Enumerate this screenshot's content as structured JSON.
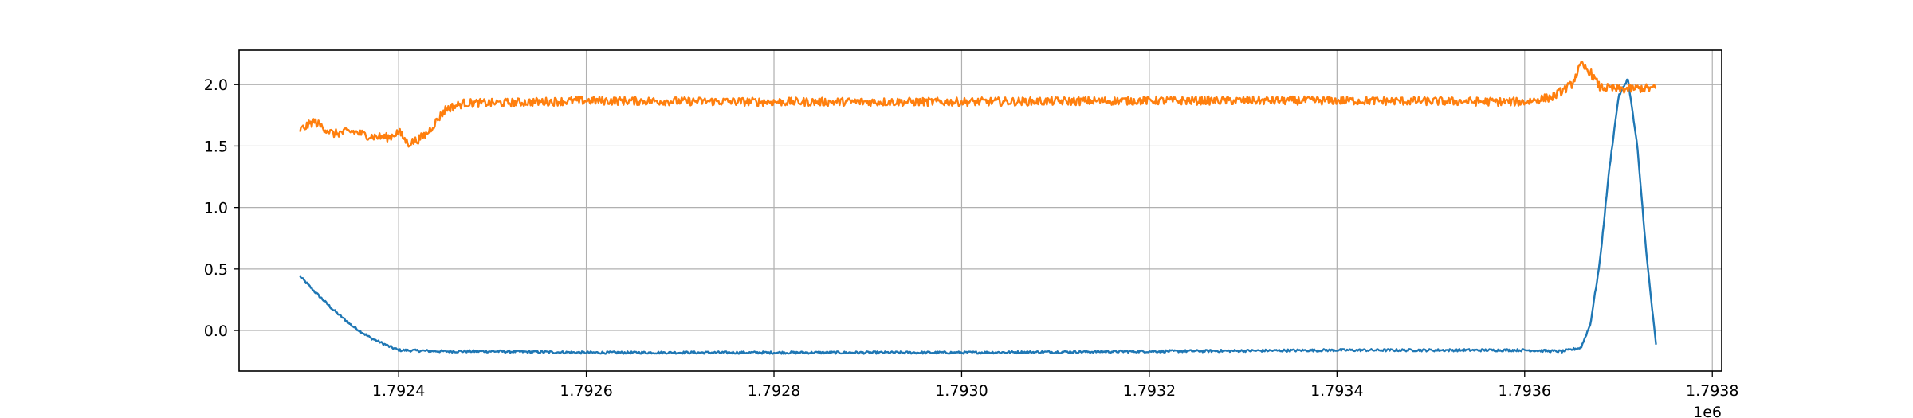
{
  "chart_data": {
    "type": "line",
    "title": "",
    "xlabel": "",
    "ylabel": "",
    "x_offset_label": "1e6",
    "xlim": [
      1.79223,
      1.79381
    ],
    "ylim": [
      -0.33,
      2.28
    ],
    "x_scale": 1000000,
    "grid": true,
    "legend": "none",
    "x_ticks": [
      1.7924,
      1.7926,
      1.7928,
      1.793,
      1.7932,
      1.7934,
      1.7936,
      1.7938
    ],
    "x_tick_labels": [
      "1.7924",
      "1.7926",
      "1.7928",
      "1.7930",
      "1.7932",
      "1.7934",
      "1.7936",
      "1.7938"
    ],
    "y_ticks": [
      0.0,
      0.5,
      1.0,
      1.5,
      2.0
    ],
    "y_tick_labels": [
      "0.0",
      "0.5",
      "1.0",
      "1.5",
      "2.0"
    ],
    "series": [
      {
        "color": "#1f77b4",
        "noise": 0.01,
        "x": [
          1.792295,
          1.79231,
          1.79233,
          1.79235,
          1.79237,
          1.79239,
          1.7924,
          1.79245,
          1.7925,
          1.7926,
          1.7928,
          1.793,
          1.7932,
          1.7934,
          1.7936,
          1.79364,
          1.79366,
          1.79367,
          1.79368,
          1.79369,
          1.7937,
          1.79371,
          1.79372,
          1.79373,
          1.79374
        ],
        "y": [
          0.44,
          0.32,
          0.17,
          0.04,
          -0.06,
          -0.13,
          -0.16,
          -0.17,
          -0.17,
          -0.18,
          -0.18,
          -0.18,
          -0.17,
          -0.16,
          -0.16,
          -0.17,
          -0.14,
          0.05,
          0.55,
          1.3,
          1.9,
          2.05,
          1.5,
          0.6,
          -0.12
        ]
      },
      {
        "color": "#ff7f0e",
        "noise": 0.035,
        "x": [
          1.792295,
          1.79231,
          1.79233,
          1.79235,
          1.79237,
          1.79239,
          1.7924,
          1.79241,
          1.79242,
          1.79243,
          1.79245,
          1.79247,
          1.7925,
          1.7926,
          1.7928,
          1.793,
          1.7932,
          1.7934,
          1.7936,
          1.79363,
          1.79365,
          1.79366,
          1.79367,
          1.79368,
          1.7937,
          1.79372,
          1.79374
        ],
        "y": [
          1.63,
          1.7,
          1.6,
          1.62,
          1.58,
          1.57,
          1.62,
          1.52,
          1.55,
          1.6,
          1.8,
          1.85,
          1.85,
          1.87,
          1.86,
          1.86,
          1.87,
          1.87,
          1.86,
          1.9,
          2.0,
          2.16,
          2.1,
          1.98,
          1.96,
          1.97,
          1.97
        ]
      }
    ]
  }
}
